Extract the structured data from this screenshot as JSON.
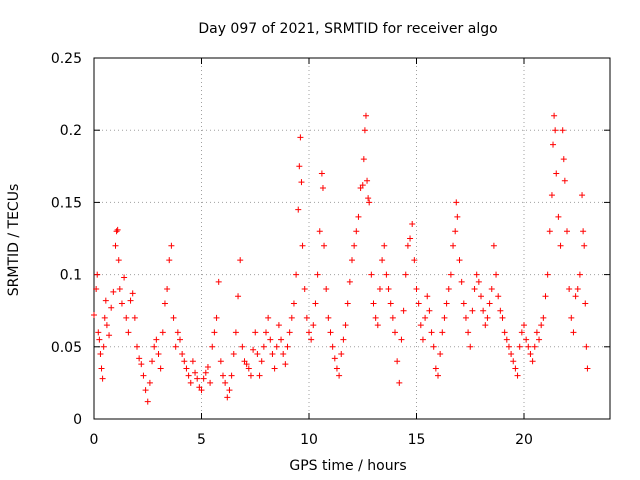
{
  "chart_data": {
    "type": "scatter",
    "title": "Day 097 of 2021, SRMTID for receiver algo",
    "xlabel": "GPS time / hours",
    "ylabel": "SRMTID / TECUs",
    "xlim": [
      0,
      24
    ],
    "ylim": [
      0,
      0.25
    ],
    "xticks": [
      0,
      5,
      10,
      15,
      20
    ],
    "xtick_labels": [
      "0",
      "5",
      "10",
      "15",
      "20"
    ],
    "yticks": [
      0,
      0.05,
      0.1,
      0.15,
      0.2,
      0.25
    ],
    "ytick_labels": [
      "0",
      "0.05",
      "0.1",
      "0.15",
      "0.2",
      "0.25"
    ],
    "grid": true,
    "marker": "+",
    "color": "#ff0000",
    "series": [
      {
        "name": "SRMTID",
        "points": [
          [
            0.0,
            0.072
          ],
          [
            0.1,
            0.09
          ],
          [
            0.15,
            0.1
          ],
          [
            0.2,
            0.06
          ],
          [
            0.25,
            0.055
          ],
          [
            0.3,
            0.045
          ],
          [
            0.35,
            0.035
          ],
          [
            0.4,
            0.028
          ],
          [
            0.45,
            0.05
          ],
          [
            0.5,
            0.07
          ],
          [
            0.55,
            0.082
          ],
          [
            0.6,
            0.065
          ],
          [
            0.7,
            0.058
          ],
          [
            0.8,
            0.077
          ],
          [
            0.9,
            0.088
          ],
          [
            1.0,
            0.12
          ],
          [
            1.05,
            0.13
          ],
          [
            1.1,
            0.131
          ],
          [
            1.15,
            0.11
          ],
          [
            1.2,
            0.09
          ],
          [
            1.3,
            0.08
          ],
          [
            1.4,
            0.098
          ],
          [
            1.5,
            0.07
          ],
          [
            1.6,
            0.06
          ],
          [
            1.7,
            0.082
          ],
          [
            1.8,
            0.087
          ],
          [
            1.9,
            0.07
          ],
          [
            2.0,
            0.05
          ],
          [
            2.1,
            0.042
          ],
          [
            2.2,
            0.038
          ],
          [
            2.3,
            0.03
          ],
          [
            2.4,
            0.02
          ],
          [
            2.5,
            0.012
          ],
          [
            2.6,
            0.025
          ],
          [
            2.7,
            0.04
          ],
          [
            2.8,
            0.05
          ],
          [
            2.9,
            0.055
          ],
          [
            3.0,
            0.045
          ],
          [
            3.1,
            0.035
          ],
          [
            3.2,
            0.06
          ],
          [
            3.3,
            0.08
          ],
          [
            3.4,
            0.09
          ],
          [
            3.5,
            0.11
          ],
          [
            3.6,
            0.12
          ],
          [
            3.7,
            0.07
          ],
          [
            3.8,
            0.05
          ],
          [
            3.9,
            0.06
          ],
          [
            4.0,
            0.055
          ],
          [
            4.1,
            0.045
          ],
          [
            4.2,
            0.04
          ],
          [
            4.3,
            0.035
          ],
          [
            4.4,
            0.03
          ],
          [
            4.5,
            0.025
          ],
          [
            4.6,
            0.04
          ],
          [
            4.7,
            0.032
          ],
          [
            4.8,
            0.028
          ],
          [
            4.9,
            0.022
          ],
          [
            5.0,
            0.02
          ],
          [
            5.1,
            0.028
          ],
          [
            5.2,
            0.032
          ],
          [
            5.3,
            0.036
          ],
          [
            5.4,
            0.025
          ],
          [
            5.5,
            0.05
          ],
          [
            5.6,
            0.06
          ],
          [
            5.7,
            0.07
          ],
          [
            5.8,
            0.095
          ],
          [
            5.9,
            0.04
          ],
          [
            6.0,
            0.03
          ],
          [
            6.1,
            0.025
          ],
          [
            6.2,
            0.015
          ],
          [
            6.3,
            0.02
          ],
          [
            6.4,
            0.03
          ],
          [
            6.5,
            0.045
          ],
          [
            6.6,
            0.06
          ],
          [
            6.7,
            0.085
          ],
          [
            6.8,
            0.11
          ],
          [
            6.9,
            0.05
          ],
          [
            7.0,
            0.04
          ],
          [
            7.1,
            0.038
          ],
          [
            7.2,
            0.035
          ],
          [
            7.3,
            0.03
          ],
          [
            7.4,
            0.048
          ],
          [
            7.5,
            0.06
          ],
          [
            7.6,
            0.045
          ],
          [
            7.7,
            0.03
          ],
          [
            7.8,
            0.04
          ],
          [
            7.9,
            0.05
          ],
          [
            8.0,
            0.06
          ],
          [
            8.1,
            0.07
          ],
          [
            8.2,
            0.055
          ],
          [
            8.3,
            0.045
          ],
          [
            8.4,
            0.035
          ],
          [
            8.5,
            0.05
          ],
          [
            8.6,
            0.065
          ],
          [
            8.7,
            0.055
          ],
          [
            8.8,
            0.045
          ],
          [
            8.9,
            0.038
          ],
          [
            9.0,
            0.05
          ],
          [
            9.1,
            0.06
          ],
          [
            9.2,
            0.07
          ],
          [
            9.3,
            0.08
          ],
          [
            9.4,
            0.1
          ],
          [
            9.5,
            0.145
          ],
          [
            9.55,
            0.175
          ],
          [
            9.6,
            0.195
          ],
          [
            9.65,
            0.164
          ],
          [
            9.7,
            0.12
          ],
          [
            9.8,
            0.09
          ],
          [
            9.9,
            0.07
          ],
          [
            10.0,
            0.06
          ],
          [
            10.1,
            0.055
          ],
          [
            10.2,
            0.065
          ],
          [
            10.3,
            0.08
          ],
          [
            10.4,
            0.1
          ],
          [
            10.5,
            0.13
          ],
          [
            10.6,
            0.17
          ],
          [
            10.65,
            0.16
          ],
          [
            10.7,
            0.12
          ],
          [
            10.8,
            0.09
          ],
          [
            10.9,
            0.07
          ],
          [
            11.0,
            0.06
          ],
          [
            11.1,
            0.05
          ],
          [
            11.2,
            0.042
          ],
          [
            11.3,
            0.035
          ],
          [
            11.4,
            0.03
          ],
          [
            11.5,
            0.045
          ],
          [
            11.6,
            0.055
          ],
          [
            11.7,
            0.065
          ],
          [
            11.8,
            0.08
          ],
          [
            11.9,
            0.095
          ],
          [
            12.0,
            0.11
          ],
          [
            12.1,
            0.12
          ],
          [
            12.2,
            0.13
          ],
          [
            12.3,
            0.14
          ],
          [
            12.4,
            0.16
          ],
          [
            12.5,
            0.162
          ],
          [
            12.55,
            0.18
          ],
          [
            12.6,
            0.2
          ],
          [
            12.65,
            0.21
          ],
          [
            12.7,
            0.165
          ],
          [
            12.75,
            0.153
          ],
          [
            12.8,
            0.15
          ],
          [
            12.9,
            0.1
          ],
          [
            13.0,
            0.08
          ],
          [
            13.1,
            0.07
          ],
          [
            13.2,
            0.065
          ],
          [
            13.3,
            0.09
          ],
          [
            13.4,
            0.11
          ],
          [
            13.5,
            0.12
          ],
          [
            13.6,
            0.1
          ],
          [
            13.7,
            0.09
          ],
          [
            13.8,
            0.08
          ],
          [
            13.9,
            0.07
          ],
          [
            14.0,
            0.06
          ],
          [
            14.1,
            0.04
          ],
          [
            14.2,
            0.025
          ],
          [
            14.3,
            0.055
          ],
          [
            14.4,
            0.075
          ],
          [
            14.5,
            0.1
          ],
          [
            14.6,
            0.12
          ],
          [
            14.7,
            0.125
          ],
          [
            14.8,
            0.135
          ],
          [
            14.9,
            0.11
          ],
          [
            15.0,
            0.09
          ],
          [
            15.1,
            0.08
          ],
          [
            15.2,
            0.065
          ],
          [
            15.3,
            0.055
          ],
          [
            15.4,
            0.07
          ],
          [
            15.5,
            0.085
          ],
          [
            15.6,
            0.075
          ],
          [
            15.7,
            0.06
          ],
          [
            15.8,
            0.05
          ],
          [
            15.9,
            0.035
          ],
          [
            16.0,
            0.03
          ],
          [
            16.1,
            0.045
          ],
          [
            16.2,
            0.06
          ],
          [
            16.3,
            0.07
          ],
          [
            16.4,
            0.08
          ],
          [
            16.5,
            0.09
          ],
          [
            16.6,
            0.1
          ],
          [
            16.7,
            0.12
          ],
          [
            16.8,
            0.13
          ],
          [
            16.85,
            0.15
          ],
          [
            16.9,
            0.14
          ],
          [
            17.0,
            0.11
          ],
          [
            17.1,
            0.095
          ],
          [
            17.2,
            0.08
          ],
          [
            17.3,
            0.07
          ],
          [
            17.4,
            0.06
          ],
          [
            17.5,
            0.05
          ],
          [
            17.6,
            0.075
          ],
          [
            17.7,
            0.09
          ],
          [
            17.8,
            0.1
          ],
          [
            17.9,
            0.095
          ],
          [
            18.0,
            0.085
          ],
          [
            18.1,
            0.075
          ],
          [
            18.2,
            0.065
          ],
          [
            18.3,
            0.07
          ],
          [
            18.4,
            0.08
          ],
          [
            18.5,
            0.09
          ],
          [
            18.6,
            0.12
          ],
          [
            18.7,
            0.1
          ],
          [
            18.8,
            0.085
          ],
          [
            18.9,
            0.075
          ],
          [
            19.0,
            0.07
          ],
          [
            19.1,
            0.06
          ],
          [
            19.2,
            0.055
          ],
          [
            19.3,
            0.05
          ],
          [
            19.4,
            0.045
          ],
          [
            19.5,
            0.04
          ],
          [
            19.6,
            0.035
          ],
          [
            19.7,
            0.03
          ],
          [
            19.8,
            0.05
          ],
          [
            19.9,
            0.06
          ],
          [
            20.0,
            0.065
          ],
          [
            20.1,
            0.055
          ],
          [
            20.2,
            0.05
          ],
          [
            20.3,
            0.045
          ],
          [
            20.4,
            0.04
          ],
          [
            20.5,
            0.05
          ],
          [
            20.6,
            0.06
          ],
          [
            20.7,
            0.055
          ],
          [
            20.8,
            0.065
          ],
          [
            20.9,
            0.07
          ],
          [
            21.0,
            0.085
          ],
          [
            21.1,
            0.1
          ],
          [
            21.2,
            0.13
          ],
          [
            21.3,
            0.155
          ],
          [
            21.35,
            0.19
          ],
          [
            21.4,
            0.21
          ],
          [
            21.45,
            0.2
          ],
          [
            21.5,
            0.17
          ],
          [
            21.6,
            0.14
          ],
          [
            21.7,
            0.12
          ],
          [
            21.8,
            0.2
          ],
          [
            21.85,
            0.18
          ],
          [
            21.9,
            0.165
          ],
          [
            22.0,
            0.13
          ],
          [
            22.1,
            0.09
          ],
          [
            22.2,
            0.07
          ],
          [
            22.3,
            0.06
          ],
          [
            22.4,
            0.085
          ],
          [
            22.5,
            0.09
          ],
          [
            22.6,
            0.1
          ],
          [
            22.7,
            0.155
          ],
          [
            22.75,
            0.13
          ],
          [
            22.8,
            0.12
          ],
          [
            22.85,
            0.08
          ],
          [
            22.9,
            0.05
          ],
          [
            22.95,
            0.035
          ]
        ]
      }
    ]
  }
}
